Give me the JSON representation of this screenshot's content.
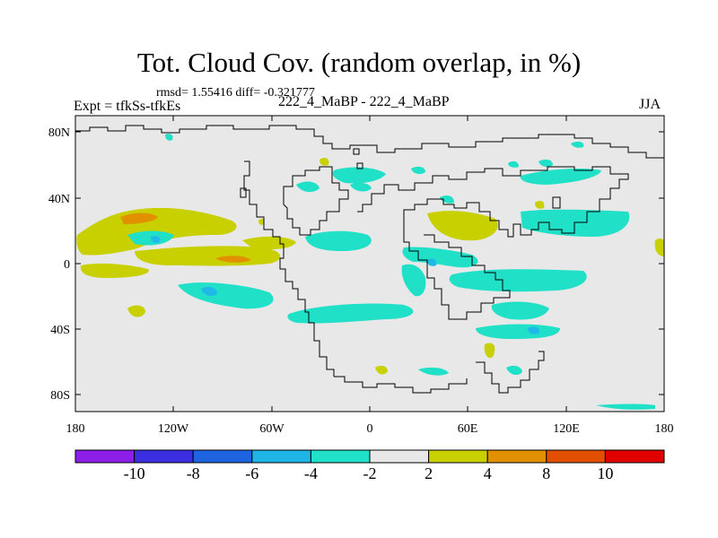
{
  "header": {
    "title": "Tot. Cloud Cov. (random overlap, in %)",
    "stats": "rmsd= 1.55416 diff= -0.321777",
    "experiment": "Expt = tfkSs-tfkEs",
    "case": "222_4_MaBP - 222_4_MaBP",
    "season": "JJA"
  },
  "map": {
    "lat_labels": [
      "80N",
      "40N",
      "0",
      "40S",
      "80S"
    ],
    "lon_labels": [
      "180",
      "120W",
      "60W",
      "0",
      "60E",
      "120E",
      "180"
    ],
    "colors": {
      "ocean_background": "#e8e8e8",
      "coastline": "#000000",
      "neg_2_4": "#20e0c8",
      "neg_4_6": "#20b8e8",
      "pos_2_4": "#c8d000",
      "pos_4_8": "#e09000",
      "pos_8_10": "#e05000"
    }
  },
  "colorbar": {
    "labels": [
      "-10",
      "-8",
      "-6",
      "-4",
      "-2",
      "2",
      "4",
      "8",
      "10"
    ],
    "colors": [
      "#8c1ee8",
      "#3a2ee0",
      "#1e64e0",
      "#1eb4e4",
      "#20e0c8",
      "#e8e8e8",
      "#c8d000",
      "#e09000",
      "#e05000",
      "#e00000"
    ]
  }
}
